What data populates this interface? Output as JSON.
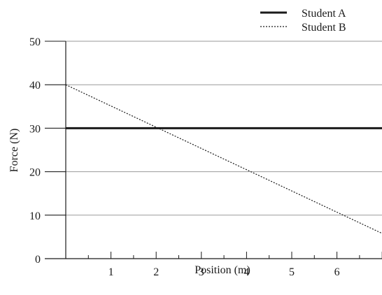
{
  "chart_data": {
    "type": "line",
    "title": "",
    "xlabel": "Position (m)",
    "ylabel": "Force (N)",
    "xlim": [
      0,
      7
    ],
    "ylim": [
      0,
      50
    ],
    "x_ticks": [
      1,
      2,
      3,
      4,
      5,
      6
    ],
    "y_ticks": [
      0,
      10,
      20,
      30,
      40,
      50
    ],
    "grid": "horizontal",
    "legend": "top-right",
    "series": [
      {
        "name": "Student A",
        "style": "solid",
        "color": "#1a1a1a",
        "x": [
          0,
          7
        ],
        "y": [
          30,
          30
        ]
      },
      {
        "name": "Student B",
        "style": "dotted",
        "color": "#1a1a1a",
        "x": [
          0,
          7
        ],
        "y": [
          40,
          5.8
        ]
      }
    ]
  }
}
